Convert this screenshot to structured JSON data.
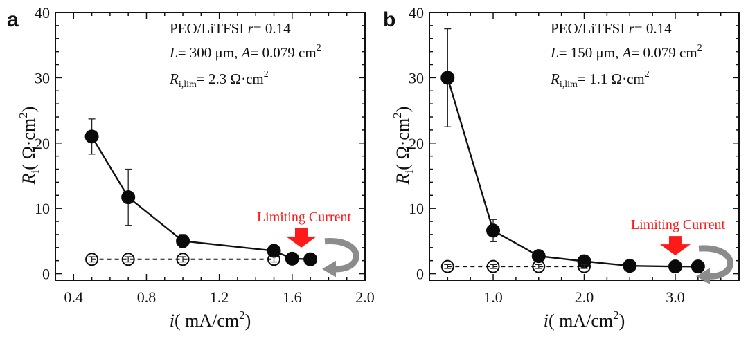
{
  "chart_data": [
    {
      "type": "scatter",
      "panel_label": "a",
      "xlabel_main": "i",
      "xlabel_unit": "( mA/cm",
      "xlabel_sup": "2",
      "xlabel_close": ")",
      "ylabel_main": "R",
      "ylabel_sub": "i",
      "ylabel_unit": "( Ω·cm",
      "ylabel_sup": "2",
      "ylabel_close": ")",
      "xlim": [
        0.3,
        2.0
      ],
      "ylim": [
        -1,
        40
      ],
      "xticks": [
        0.4,
        0.8,
        1.2,
        1.6,
        2.0
      ],
      "xtick_labels": [
        "0.4",
        "0.8",
        "1.2",
        "1.6",
        "2.0"
      ],
      "yticks": [
        0,
        10,
        20,
        30,
        40
      ],
      "ytick_labels": [
        "0",
        "10",
        "20",
        "30",
        "40"
      ],
      "annotations": {
        "line1_a": "PEO/LiTFSI ",
        "line1_b": "r",
        "line1_c": "=  0.14",
        "line2_a": "L",
        "line2_b": "=  300 μm,  ",
        "line2_c": "A",
        "line2_d": "=  0.079 cm",
        "line2_e": "2",
        "line3_a": "R",
        "line3_b": "i,lim",
        "line3_c": "=  2.3 Ω·cm",
        "line3_d": "2",
        "limiting": "Limiting Current"
      },
      "series": [
        {
          "style": "filled-solid",
          "x": [
            0.5,
            0.7,
            1.0,
            1.5,
            1.6,
            1.7
          ],
          "y": [
            21.0,
            11.7,
            5.0,
            3.5,
            2.3,
            2.2
          ],
          "err": [
            2.7,
            4.3,
            1.0,
            0.4,
            0.3,
            0.3
          ]
        },
        {
          "style": "open-dashed",
          "x": [
            0.5,
            0.7,
            1.0,
            1.5
          ],
          "y": [
            2.2,
            2.2,
            2.2,
            2.2
          ],
          "err": [
            0.4,
            0.4,
            0.4,
            0.4
          ]
        }
      ],
      "arrow_x": 1.65
    },
    {
      "type": "scatter",
      "panel_label": "b",
      "xlabel_main": "i",
      "xlabel_unit": "( mA/cm",
      "xlabel_sup": "2",
      "xlabel_close": ")",
      "ylabel_main": "R",
      "ylabel_sub": "i",
      "ylabel_unit": "( Ω·cm",
      "ylabel_sup": "2",
      "ylabel_close": ")",
      "xlim": [
        0.3,
        3.7
      ],
      "ylim": [
        -1,
        40
      ],
      "xticks": [
        1.0,
        2.0,
        3.0
      ],
      "xtick_labels": [
        "1.0",
        "2.0",
        "3.0"
      ],
      "yticks": [
        0,
        10,
        20,
        30,
        40
      ],
      "ytick_labels": [
        "0",
        "10",
        "20",
        "30",
        "40"
      ],
      "annotations": {
        "line1_a": "PEO/LiTFSI ",
        "line1_b": "r",
        "line1_c": "=  0.14",
        "line2_a": "L",
        "line2_b": "=  150 μm,  ",
        "line2_c": "A",
        "line2_d": "=  0.079 cm",
        "line2_e": "2",
        "line3_a": "R",
        "line3_b": "i,lim",
        "line3_c": "=  1.1 Ω·cm",
        "line3_d": "2",
        "limiting": "Limiting Current"
      },
      "series": [
        {
          "style": "filled-solid",
          "x": [
            0.5,
            1.0,
            1.5,
            2.0,
            2.5,
            3.0,
            3.25
          ],
          "y": [
            30.0,
            6.6,
            2.7,
            1.9,
            1.2,
            1.1,
            1.1
          ],
          "err": [
            7.5,
            1.7,
            0.4,
            0.3,
            0.2,
            0.2,
            0.2
          ]
        },
        {
          "style": "open-dashed",
          "x": [
            0.5,
            1.0,
            1.5,
            2.0
          ],
          "y": [
            1.1,
            1.1,
            1.1,
            1.1
          ],
          "err": [
            0.3,
            0.3,
            0.3,
            0.3
          ]
        }
      ],
      "arrow_x": 3.0
    }
  ]
}
